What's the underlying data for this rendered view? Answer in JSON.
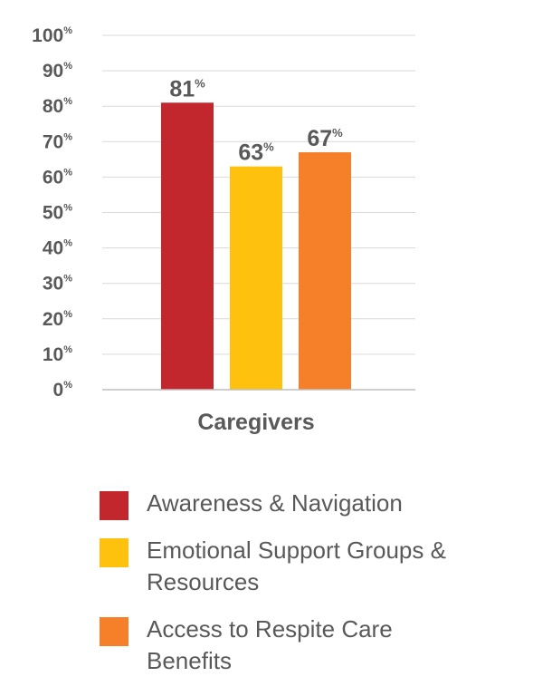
{
  "chart_data": {
    "type": "bar",
    "categories": [
      "Caregivers"
    ],
    "series": [
      {
        "name": "Awareness & Navigation",
        "values": [
          81
        ],
        "color": "#c1272d"
      },
      {
        "name": "Emotional Support Groups & Resources",
        "values": [
          63
        ],
        "color": "#fec10e"
      },
      {
        "name": "Access to Respite Care Benefits",
        "values": [
          67
        ],
        "color": "#f6802a"
      }
    ],
    "title": "",
    "xlabel": "",
    "ylabel": "",
    "ylim": [
      0,
      100
    ],
    "yticks": [
      "0",
      "10",
      "20",
      "30",
      "40",
      "50",
      "60",
      "70",
      "80",
      "90",
      "100"
    ],
    "unit_suffix": "%",
    "grid": true,
    "legend_position": "bottom"
  }
}
